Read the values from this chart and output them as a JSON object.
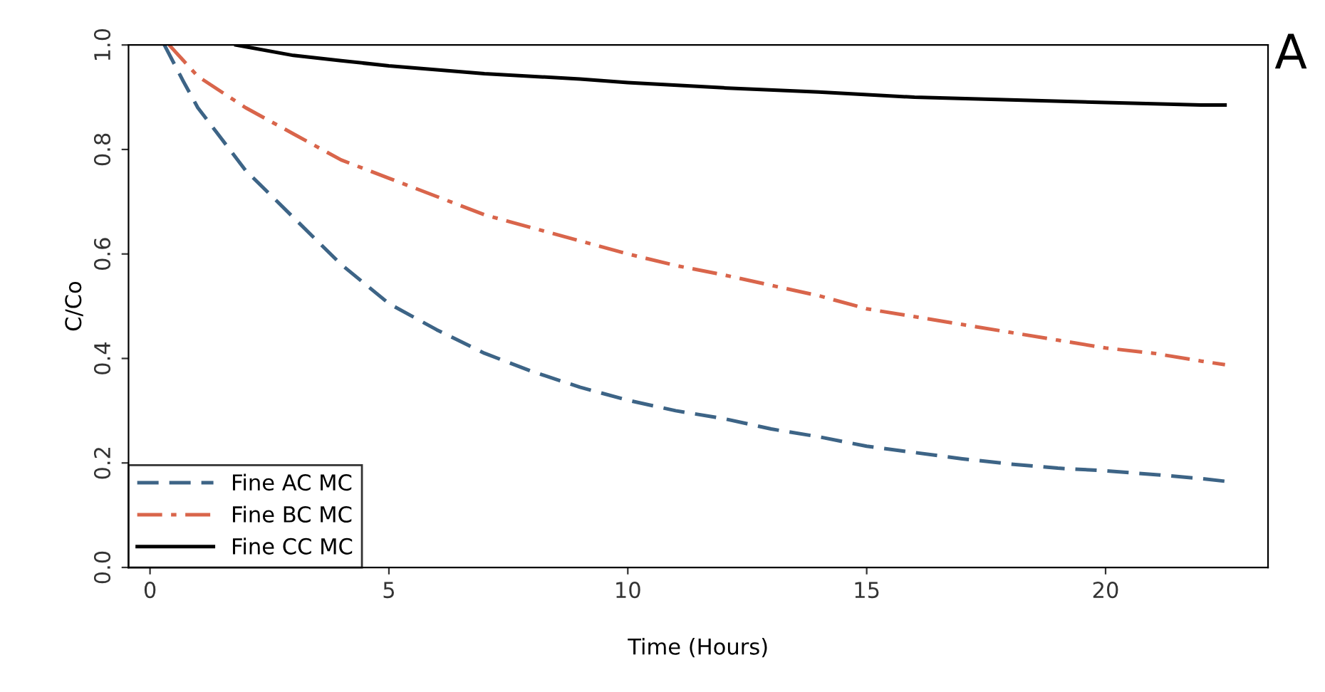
{
  "chart_data": {
    "type": "line",
    "xlabel": "Time (Hours)",
    "ylabel": "C/Co",
    "annotations": [
      "A"
    ],
    "xlim": [
      -0.45,
      23.4
    ],
    "ylim": [
      0,
      1
    ],
    "xticks": [
      0,
      5,
      10,
      15,
      20
    ],
    "yticks": [
      {
        "value": 0,
        "label": "0.0"
      },
      0.2,
      0.4,
      0.6,
      0.8,
      {
        "value": 1,
        "label": "1.0"
      }
    ],
    "grid": false,
    "legend": "bottom left",
    "marker": "none",
    "series": [
      {
        "name": "Fine AC MC",
        "color": "#3d6486",
        "line_style": "dashed",
        "x": [
          0.3,
          0.7,
          1,
          1.5,
          2,
          3,
          4,
          5,
          6,
          7,
          8,
          9,
          10,
          11,
          12,
          13,
          14,
          15,
          16,
          17,
          18,
          19,
          20,
          21,
          22,
          22.5
        ],
        "values": [
          1.0,
          0.93,
          0.88,
          0.82,
          0.76,
          0.67,
          0.58,
          0.505,
          0.455,
          0.41,
          0.375,
          0.345,
          0.32,
          0.3,
          0.285,
          0.265,
          0.25,
          0.232,
          0.22,
          0.208,
          0.198,
          0.19,
          0.185,
          0.178,
          0.17,
          0.165
        ]
      },
      {
        "name": "Fine BC MC",
        "color": "#d9654b",
        "line_style": "dashdot",
        "x": [
          0.4,
          1,
          2,
          3,
          4,
          5,
          6,
          7,
          8,
          9,
          10,
          11,
          12,
          13,
          14,
          15,
          16,
          17,
          18,
          19,
          20,
          21,
          22,
          22.5
        ],
        "values": [
          1.0,
          0.94,
          0.88,
          0.83,
          0.78,
          0.745,
          0.71,
          0.675,
          0.65,
          0.625,
          0.6,
          0.578,
          0.56,
          0.54,
          0.52,
          0.495,
          0.48,
          0.465,
          0.45,
          0.435,
          0.42,
          0.41,
          0.395,
          0.388
        ]
      },
      {
        "name": "Fine CC MC",
        "color": "#000000",
        "line_style": "solid",
        "x": [
          1.8,
          3,
          4,
          5,
          7,
          9,
          10,
          12,
          14,
          16,
          18,
          20,
          22,
          22.5
        ],
        "values": [
          1.0,
          0.98,
          0.97,
          0.96,
          0.945,
          0.935,
          0.928,
          0.918,
          0.91,
          0.9,
          0.895,
          0.89,
          0.885,
          0.885
        ]
      }
    ]
  }
}
